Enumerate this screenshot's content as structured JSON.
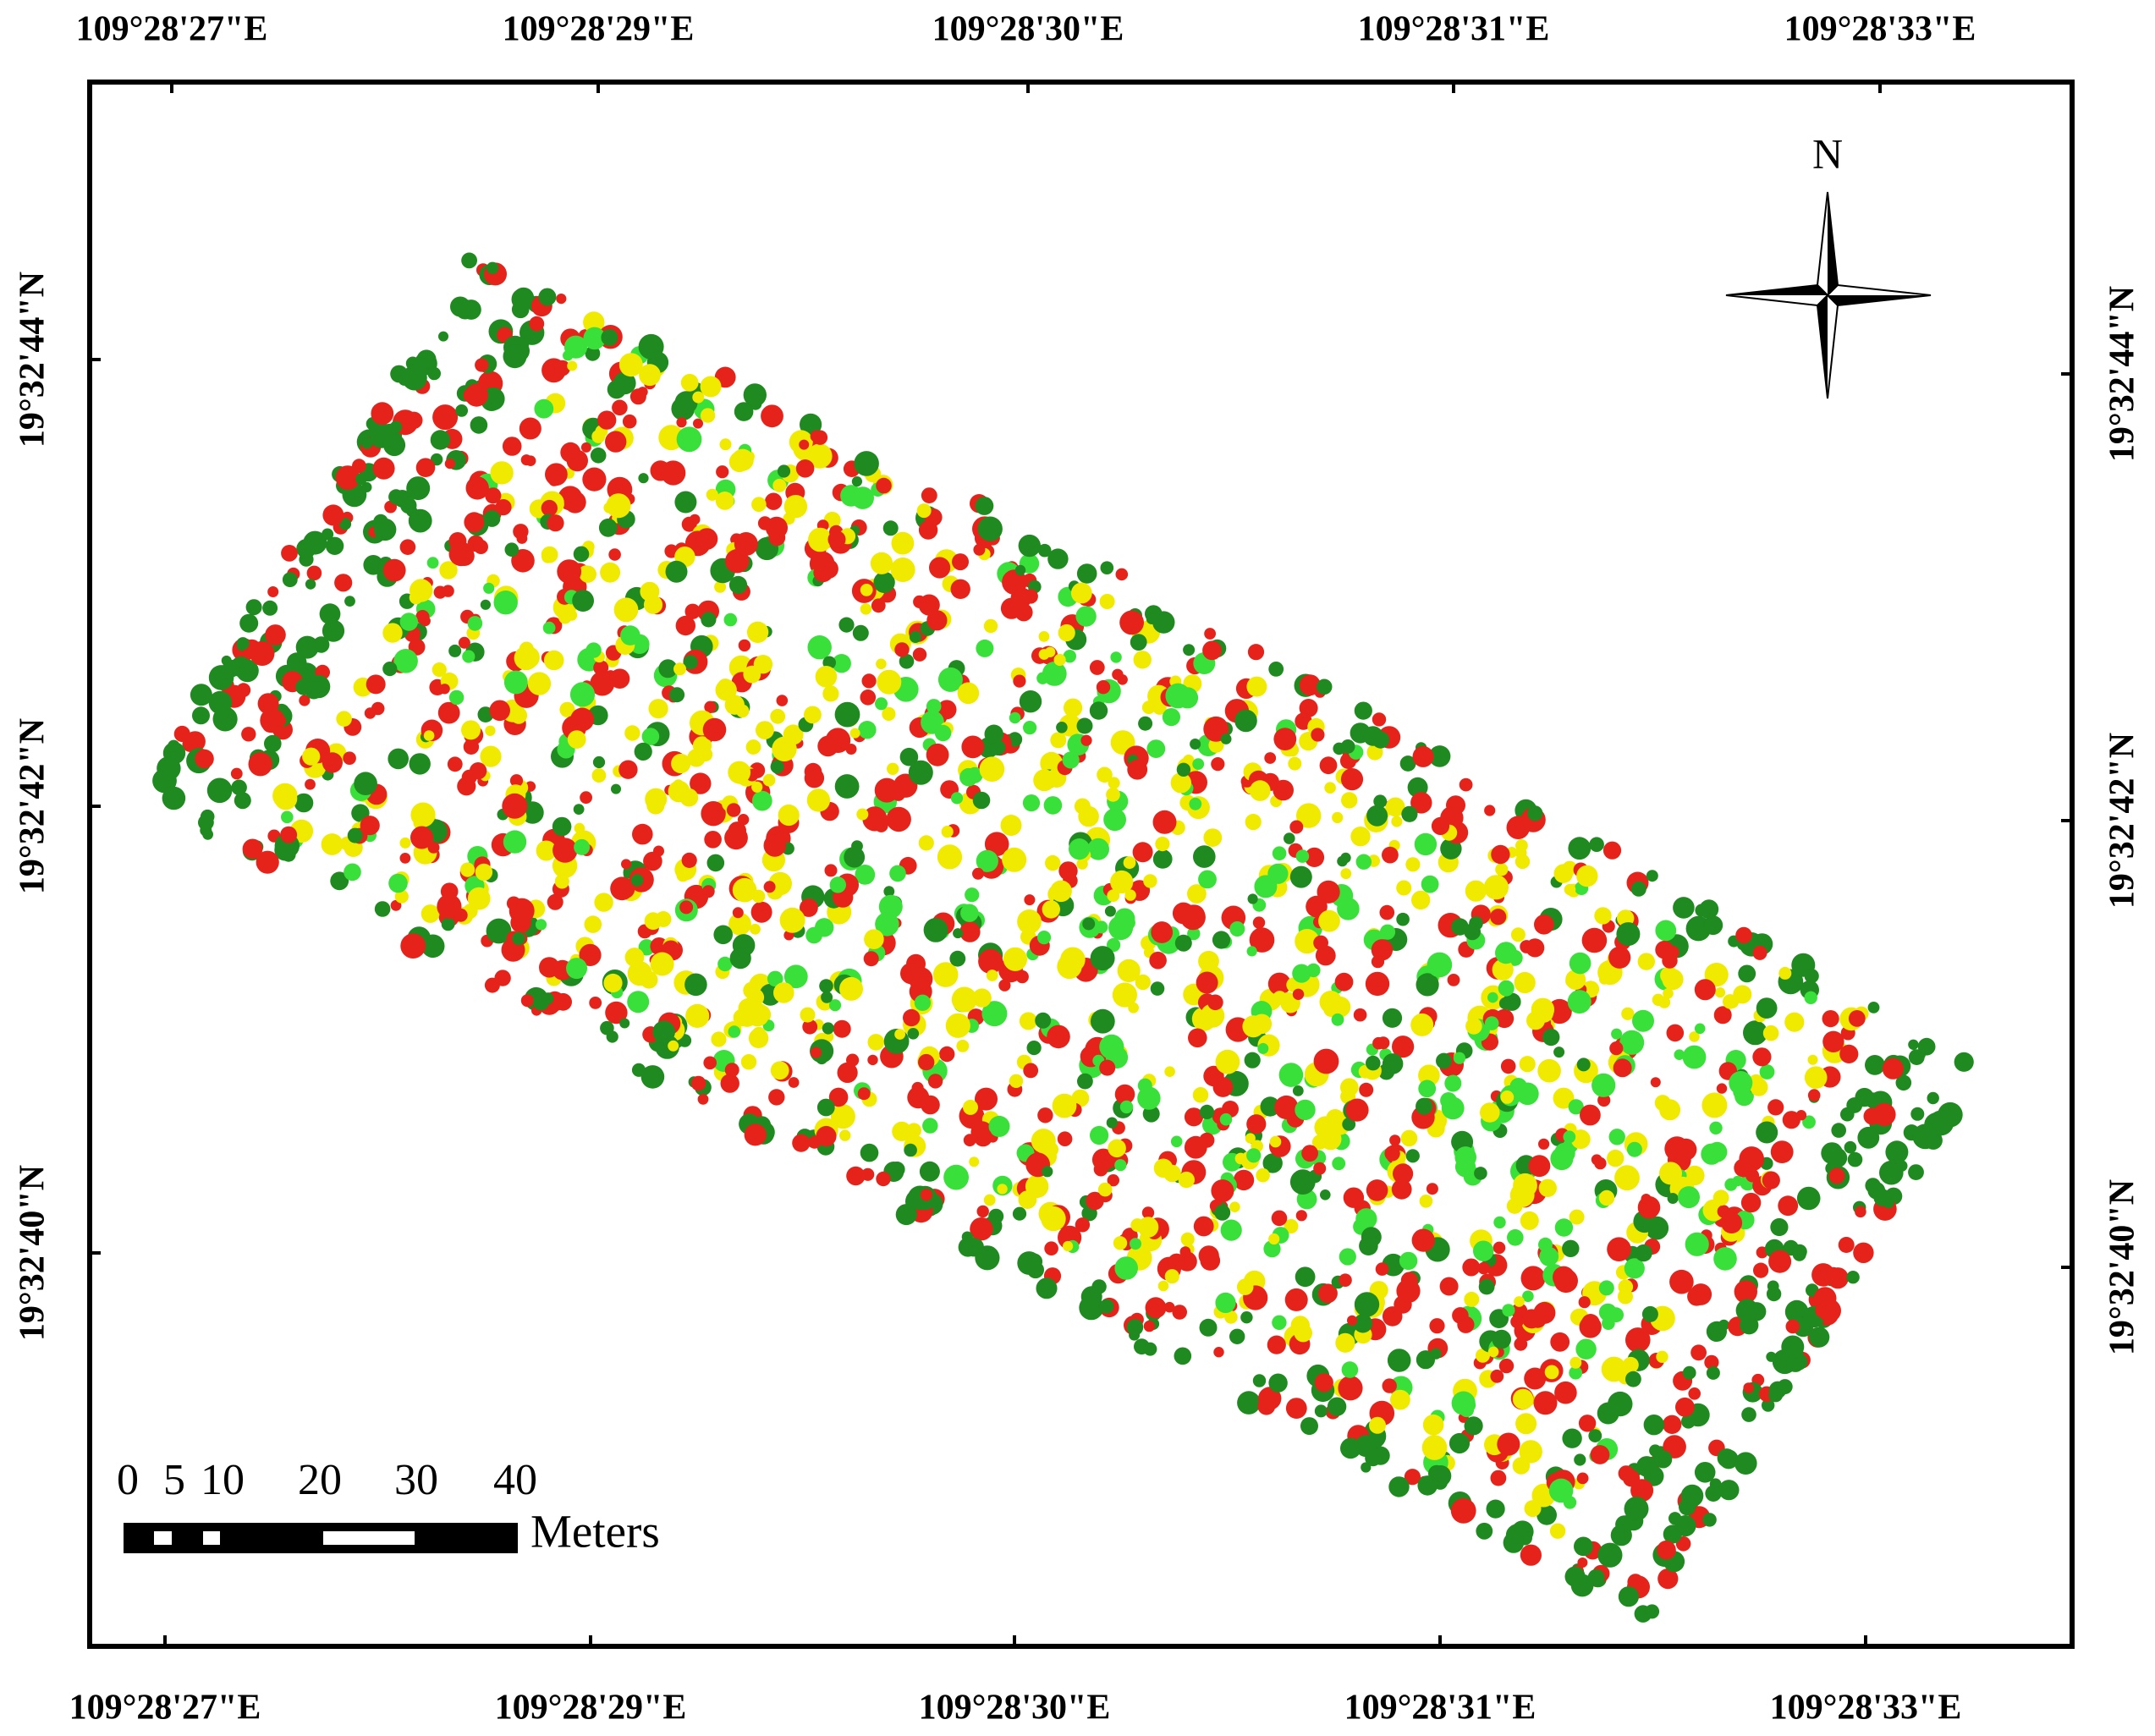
{
  "map": {
    "top_labels": [
      "109°28'27\"E",
      "109°28'29\"E",
      "109°28'30\"E",
      "109°28'31\"E",
      "109°28'33\"E"
    ],
    "bottom_labels": [
      "109°28'27\"E",
      "109°28'29\"E",
      "109°28'30\"E",
      "109°28'31\"E",
      "109°28'33\"E"
    ],
    "left_labels": [
      "19°32'44\"N",
      "19°32'42\"N",
      "19°32'40\"N"
    ],
    "right_labels": [
      "19°32'44\"N",
      "19°32'42\"N",
      "19°32'40\"N"
    ],
    "north": "N",
    "scale_bar": {
      "labels": [
        "0",
        "5",
        "10",
        "20",
        "30",
        "40"
      ],
      "unit": "Meters"
    }
  }
}
